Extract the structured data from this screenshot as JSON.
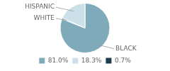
{
  "chart_data": {
    "type": "pie",
    "categories": [
      "BLACK",
      "WHITE",
      "HISPANIC"
    ],
    "values": [
      81.0,
      0.7,
      18.3
    ],
    "value_labels": [
      "81.0%",
      "0.7%",
      "18.3%"
    ],
    "colors": [
      "#7faab9",
      "#1b3d50",
      "#cce0ea"
    ],
    "legend": "bottom"
  }
}
